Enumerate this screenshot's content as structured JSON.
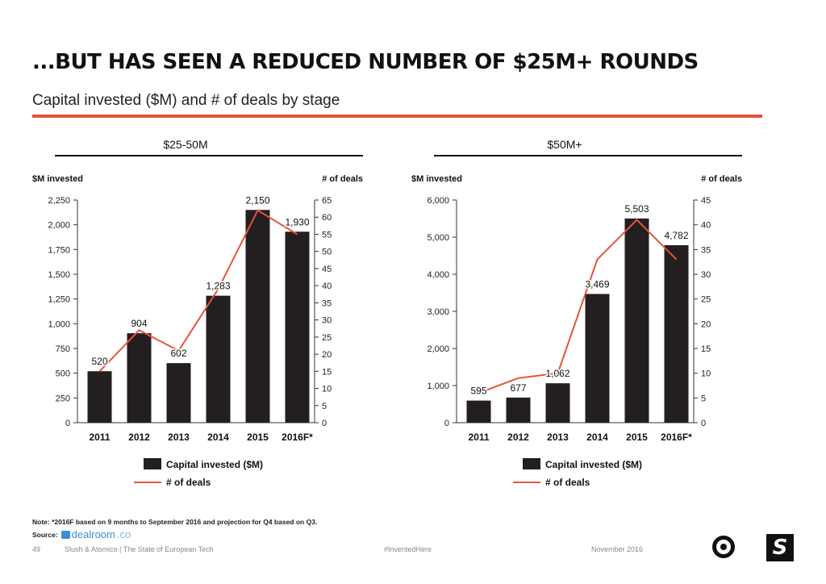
{
  "header": {
    "title": "...BUT HAS SEEN A REDUCED NUMBER OF $25M+ ROUNDS",
    "subtitle": "Capital invested ($M) and # of deals by stage"
  },
  "colors": {
    "bar": "#231f20",
    "line": "#e8533a",
    "accent": "#e8533a"
  },
  "chart_data": [
    {
      "type": "bar",
      "title": "$25-50M",
      "ylabel": "$M invested",
      "y2label": "# of deals",
      "categories": [
        "2011",
        "2012",
        "2013",
        "2014",
        "2015",
        "2016F*"
      ],
      "ylim": [
        0,
        2250
      ],
      "yticks": [
        0,
        250,
        500,
        750,
        1000,
        1250,
        1500,
        1750,
        2000,
        2250
      ],
      "ytick_labels": [
        "0",
        "250",
        "500",
        "750",
        "1,000",
        "1,250",
        "1,500",
        "1,750",
        "2,000",
        "2,250"
      ],
      "y2lim": [
        0,
        65
      ],
      "y2ticks": [
        0,
        5,
        10,
        15,
        20,
        25,
        30,
        35,
        40,
        45,
        50,
        55,
        60,
        65
      ],
      "series": [
        {
          "name": "Capital invested ($M)",
          "type": "bar",
          "values": [
            520,
            904,
            602,
            1283,
            2150,
            1930
          ],
          "labels": [
            "520",
            "904",
            "602",
            "1,283",
            "2,150",
            "1,930"
          ]
        },
        {
          "name": "# of deals",
          "type": "line",
          "axis": "right",
          "values": [
            15,
            27,
            21,
            39,
            62,
            55
          ]
        }
      ],
      "legend": "bottom"
    },
    {
      "type": "bar",
      "title": "$50M+",
      "ylabel": "$M invested",
      "y2label": "# of deals",
      "categories": [
        "2011",
        "2012",
        "2013",
        "2014",
        "2015",
        "2016F*"
      ],
      "ylim": [
        0,
        6000
      ],
      "yticks": [
        0,
        1000,
        2000,
        3000,
        4000,
        5000,
        6000
      ],
      "ytick_labels": [
        "0",
        "1,000",
        "2,000",
        "3,000",
        "4,000",
        "5,000",
        "6,000"
      ],
      "y2lim": [
        0,
        45
      ],
      "y2ticks": [
        0,
        5,
        10,
        15,
        20,
        25,
        30,
        35,
        40,
        45
      ],
      "series": [
        {
          "name": "Capital invested ($M)",
          "type": "bar",
          "values": [
            595,
            677,
            1062,
            3469,
            5503,
            4782
          ],
          "labels": [
            "595",
            "677",
            "1,062",
            "3,469",
            "5,503",
            "4,782"
          ]
        },
        {
          "name": "# of deals",
          "type": "line",
          "axis": "right",
          "values": [
            6,
            9,
            10,
            33,
            41,
            33
          ]
        }
      ],
      "legend": "bottom"
    }
  ],
  "footer": {
    "note": "Note: *2016F based on 9 months to September 2016 and projection for Q4 based on Q3.",
    "source_label": "Source:",
    "source_name": "dealroom",
    "source_tld": ".co",
    "page_number": "49",
    "publisher": "Slush & Atomico  |  The State of European Tech",
    "hashtag": "#InventedHere",
    "date": "November 2016"
  }
}
